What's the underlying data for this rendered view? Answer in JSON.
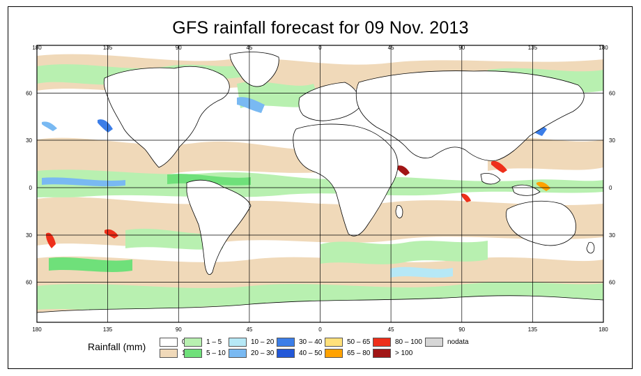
{
  "title": "GFS rainfall forecast for 09 Nov. 2013",
  "axes": {
    "lon_ticks": [
      "180",
      "135",
      "90",
      "45",
      "0",
      "45",
      "90",
      "135",
      "180"
    ],
    "lat_ticks": [
      "60",
      "30",
      "0",
      "30",
      "60"
    ]
  },
  "legend": {
    "title": "Rainfall (mm)",
    "items": [
      {
        "label": "0",
        "color": "#ffffff"
      },
      {
        "label": "1",
        "color": "#f0d9b9"
      },
      {
        "label": "1 – 5",
        "color": "#b8f0b0"
      },
      {
        "label": "5 – 10",
        "color": "#6fe07a"
      },
      {
        "label": "10 – 20",
        "color": "#b6e8f6"
      },
      {
        "label": "20 – 30",
        "color": "#79b9f2"
      },
      {
        "label": "30 – 40",
        "color": "#3c7ee8"
      },
      {
        "label": "40 – 50",
        "color": "#2358d8"
      },
      {
        "label": "50 – 65",
        "color": "#ffe07a"
      },
      {
        "label": "65 – 80",
        "color": "#ffa200"
      },
      {
        "label": "80 – 100",
        "color": "#ee2f1a"
      },
      {
        "label": "> 100",
        "color": "#a11515"
      },
      {
        "label": "nodata",
        "color": "#d6d6d6"
      }
    ]
  },
  "colors": {
    "ocean": "#ffffff",
    "land_outline": "#000000",
    "grid": "#000000"
  }
}
